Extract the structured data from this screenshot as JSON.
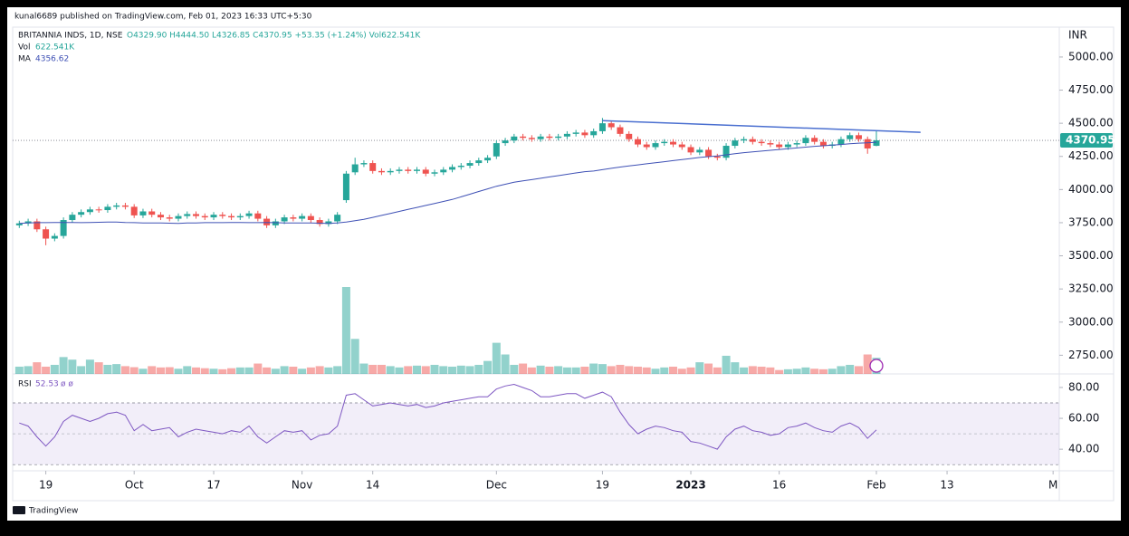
{
  "header": "kunal6689 published on TradingView.com, Feb 01, 2023 16:33 UTC+5:30",
  "footer": "TradingView",
  "chart_data": {
    "type": "candlestick",
    "legend": {
      "symbol": "BRITANNIA INDS, 1D, NSE",
      "ohlc": "O4329.90 H4444.50 L4326.85 C4370.95 +53.35 (+1.24%) Vol622.541K",
      "vol_label": "Vol",
      "vol_value": "622.541K",
      "ma_label": "MA",
      "ma_value": "4356.62"
    },
    "currency": "INR",
    "last_label": "4370.95",
    "up_color": "#26a69a",
    "down_color": "#ef5350",
    "ma_color": "#3f51b5",
    "trend_color": "#4a6fd0",
    "xlim": [
      -0.75,
      117.7
    ],
    "xticks": [
      {
        "value": 3,
        "label": "19"
      },
      {
        "value": 13,
        "label": "Oct"
      },
      {
        "value": 22,
        "label": "17"
      },
      {
        "value": 32,
        "label": "Nov"
      },
      {
        "value": 40,
        "label": "14"
      },
      {
        "value": 54,
        "label": "Dec"
      },
      {
        "value": 66,
        "label": "19"
      },
      {
        "value": 76,
        "label": "2023"
      },
      {
        "value": 86,
        "label": "16"
      },
      {
        "value": 97,
        "label": "Feb"
      },
      {
        "value": 105,
        "label": "13"
      },
      {
        "value": 117,
        "label": "M"
      }
    ],
    "ylim": [
      2609,
      5225
    ],
    "yticks": [
      {
        "value": 2750,
        "label": "2750.00"
      },
      {
        "value": 3000,
        "label": "3000.00"
      },
      {
        "value": 3250,
        "label": "3250.00"
      },
      {
        "value": 3500,
        "label": "3500.00"
      },
      {
        "value": 3750,
        "label": "3750.00"
      },
      {
        "value": 4000,
        "label": "4000.00"
      },
      {
        "value": 4250,
        "label": "4250.00"
      },
      {
        "value": 4500,
        "label": "4500.00"
      },
      {
        "value": 4750,
        "label": "4750.00"
      },
      {
        "value": 5000,
        "label": "5000.00"
      }
    ],
    "open": [
      3730,
      3745,
      3760,
      3700,
      3630,
      3650,
      3770,
      3810,
      3830,
      3850,
      3845,
      3870,
      3880,
      3870,
      3805,
      3835,
      3810,
      3790,
      3780,
      3800,
      3815,
      3800,
      3790,
      3810,
      3800,
      3790,
      3800,
      3820,
      3780,
      3730,
      3760,
      3790,
      3780,
      3800,
      3770,
      3740,
      3760,
      3920,
      4130,
      4190,
      4200,
      4140,
      4130,
      4140,
      4150,
      4140,
      4150,
      4120,
      4130,
      4150,
      4170,
      4180,
      4200,
      4220,
      4250,
      4350,
      4370,
      4400,
      4390,
      4380,
      4400,
      4390,
      4400,
      4420,
      4430,
      4410,
      4440,
      4500,
      4470,
      4420,
      4380,
      4340,
      4320,
      4350,
      4360,
      4340,
      4320,
      4280,
      4300,
      4250,
      4240,
      4330,
      4370,
      4380,
      4360,
      4350,
      4340,
      4320,
      4340,
      4350,
      4390,
      4360,
      4330,
      4340,
      4380,
      4410,
      4380,
      4329.9
    ],
    "high": [
      3765,
      3780,
      3780,
      3720,
      3670,
      3790,
      3830,
      3850,
      3870,
      3870,
      3890,
      3900,
      3900,
      3890,
      3855,
      3855,
      3830,
      3810,
      3820,
      3835,
      3835,
      3820,
      3830,
      3830,
      3820,
      3820,
      3840,
      3840,
      3800,
      3780,
      3810,
      3810,
      3820,
      3820,
      3790,
      3780,
      3830,
      4140,
      4240,
      4220,
      4220,
      4160,
      4160,
      4170,
      4170,
      4170,
      4170,
      4150,
      4170,
      4190,
      4200,
      4220,
      4240,
      4260,
      4370,
      4390,
      4420,
      4420,
      4410,
      4420,
      4420,
      4420,
      4440,
      4450,
      4450,
      4460,
      4540,
      4520,
      4490,
      4440,
      4400,
      4360,
      4370,
      4380,
      4380,
      4360,
      4340,
      4320,
      4320,
      4270,
      4350,
      4390,
      4400,
      4400,
      4380,
      4370,
      4360,
      4360,
      4370,
      4410,
      4410,
      4380,
      4360,
      4400,
      4430,
      4430,
      4400,
      4444.5
    ],
    "low": [
      3710,
      3725,
      3680,
      3580,
      3610,
      3630,
      3750,
      3790,
      3810,
      3825,
      3825,
      3850,
      3850,
      3785,
      3785,
      3790,
      3770,
      3760,
      3760,
      3780,
      3780,
      3770,
      3770,
      3780,
      3770,
      3770,
      3780,
      3760,
      3710,
      3710,
      3740,
      3760,
      3760,
      3750,
      3720,
      3720,
      3740,
      3900,
      4110,
      4170,
      4120,
      4110,
      4110,
      4120,
      4120,
      4120,
      4100,
      4100,
      4110,
      4130,
      4150,
      4160,
      4180,
      4200,
      4230,
      4330,
      4350,
      4370,
      4360,
      4360,
      4370,
      4370,
      4380,
      4400,
      4390,
      4390,
      4420,
      4450,
      4400,
      4360,
      4320,
      4300,
      4300,
      4330,
      4320,
      4300,
      4260,
      4260,
      4230,
      4220,
      4220,
      4310,
      4350,
      4340,
      4330,
      4320,
      4300,
      4300,
      4320,
      4330,
      4340,
      4310,
      4310,
      4320,
      4360,
      4360,
      4270,
      4326.85
    ],
    "close": [
      3745,
      3760,
      3700,
      3630,
      3650,
      3770,
      3810,
      3830,
      3850,
      3845,
      3870,
      3880,
      3870,
      3805,
      3835,
      3810,
      3790,
      3780,
      3800,
      3815,
      3800,
      3790,
      3810,
      3800,
      3790,
      3800,
      3820,
      3780,
      3730,
      3760,
      3790,
      3780,
      3800,
      3770,
      3740,
      3760,
      3810,
      4120,
      4190,
      4200,
      4140,
      4130,
      4140,
      4150,
      4140,
      4150,
      4120,
      4130,
      4150,
      4170,
      4180,
      4200,
      4220,
      4240,
      4350,
      4370,
      4400,
      4390,
      4380,
      4400,
      4390,
      4400,
      4420,
      4430,
      4410,
      4440,
      4500,
      4470,
      4420,
      4380,
      4340,
      4320,
      4350,
      4360,
      4340,
      4320,
      4280,
      4300,
      4250,
      4240,
      4330,
      4370,
      4380,
      4360,
      4350,
      4340,
      4320,
      4340,
      4350,
      4390,
      4360,
      4330,
      4340,
      4380,
      4410,
      4380,
      4310,
      4370.95
    ],
    "volume": [
      280000,
      300000,
      450000,
      280000,
      350000,
      650000,
      550000,
      300000,
      550000,
      450000,
      350000,
      380000,
      300000,
      260000,
      200000,
      300000,
      250000,
      260000,
      200000,
      300000,
      250000,
      220000,
      200000,
      180000,
      220000,
      250000,
      250000,
      400000,
      250000,
      200000,
      300000,
      280000,
      200000,
      250000,
      300000,
      250000,
      300000,
      3350000,
      1350000,
      400000,
      350000,
      350000,
      300000,
      250000,
      300000,
      320000,
      300000,
      350000,
      300000,
      280000,
      320000,
      300000,
      350000,
      500000,
      1200000,
      750000,
      350000,
      400000,
      250000,
      320000,
      280000,
      300000,
      250000,
      250000,
      280000,
      400000,
      380000,
      300000,
      350000,
      300000,
      280000,
      250000,
      200000,
      250000,
      280000,
      200000,
      250000,
      450000,
      400000,
      250000,
      700000,
      450000,
      250000,
      300000,
      280000,
      250000,
      150000,
      180000,
      200000,
      250000,
      200000,
      180000,
      200000,
      300000,
      350000,
      300000,
      750000,
      622541
    ],
    "ma": [
      3745,
      3748,
      3750,
      3750,
      3752,
      3752,
      3752,
      3750,
      3752,
      3753,
      3755,
      3755,
      3752,
      3750,
      3748,
      3748,
      3748,
      3746,
      3745,
      3748,
      3748,
      3750,
      3750,
      3750,
      3752,
      3752,
      3750,
      3750,
      3752,
      3750,
      3748,
      3748,
      3748,
      3748,
      3746,
      3745,
      3748,
      3755,
      3765,
      3775,
      3790,
      3805,
      3820,
      3835,
      3850,
      3865,
      3880,
      3895,
      3910,
      3925,
      3945,
      3965,
      3985,
      4005,
      4025,
      4040,
      4055,
      4065,
      4075,
      4085,
      4095,
      4105,
      4115,
      4125,
      4135,
      4140,
      4150,
      4160,
      4170,
      4178,
      4186,
      4194,
      4202,
      4210,
      4218,
      4226,
      4234,
      4242,
      4248,
      4254,
      4262,
      4270,
      4278,
      4284,
      4290,
      4296,
      4302,
      4308,
      4314,
      4320,
      4326,
      4330,
      4335,
      4340,
      4345,
      4350,
      4353,
      4356.62
    ],
    "trendline": {
      "x": [
        66,
        102
      ],
      "y": [
        4520,
        4432
      ]
    },
    "rsi": {
      "label": "RSI",
      "value": "52.53",
      "extra": "ø ø",
      "color": "#7e57c2",
      "ylim": [
        26,
        87.6
      ],
      "band": [
        30,
        70
      ],
      "mid": 50,
      "yticks": [
        {
          "value": 40,
          "label": "40.00"
        },
        {
          "value": 60,
          "label": "60.00"
        },
        {
          "value": 80,
          "label": "80.00"
        }
      ],
      "values": [
        57,
        55,
        48,
        42,
        48,
        58,
        62,
        60,
        58,
        60,
        63,
        64,
        62,
        52,
        56,
        52,
        53,
        54,
        48,
        51,
        53,
        52,
        51,
        50,
        52,
        51,
        55,
        48,
        44,
        48,
        52,
        51,
        52,
        46,
        49,
        50,
        55,
        75,
        76,
        72,
        68,
        69,
        70,
        69,
        68,
        69,
        67,
        68,
        70,
        71,
        72,
        73,
        74,
        74,
        79,
        81,
        82,
        80,
        78,
        74,
        74,
        75,
        76,
        76,
        73,
        75,
        77,
        74,
        64,
        56,
        50,
        53,
        55,
        54,
        52,
        51,
        45,
        44,
        42,
        40,
        48,
        53,
        55,
        52,
        51,
        49,
        50,
        54,
        55,
        57,
        54,
        52,
        51,
        55,
        57,
        54,
        47,
        52.53
      ]
    }
  }
}
